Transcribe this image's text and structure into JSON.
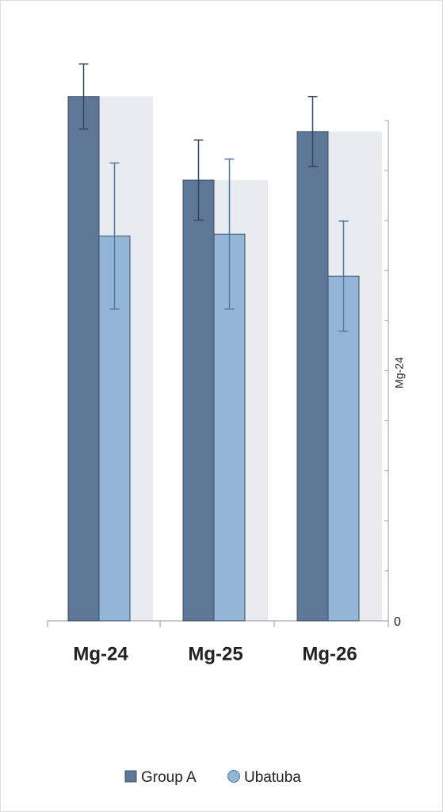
{
  "chart_data": {
    "type": "bar",
    "categories": [
      "Mg-24",
      "Mg-25",
      "Mg-26"
    ],
    "series": [
      {
        "name": "Group A",
        "color": "#5f7796",
        "values": [
          104.8,
          88.1,
          97.8
        ],
        "errors": [
          6.5,
          8,
          7
        ]
      },
      {
        "name": "Ubatuba",
        "color": "#94b6d6",
        "values": [
          76.9,
          77.3,
          68.9
        ],
        "errors": [
          14.6,
          15,
          11
        ]
      }
    ],
    "y_label": "Mg-24",
    "ylim": [
      0,
      100
    ],
    "yticks": [
      0
    ],
    "yminorticks": [
      10,
      20,
      30,
      40,
      50,
      60,
      70,
      80,
      90,
      100
    ],
    "legend": "bottom"
  }
}
